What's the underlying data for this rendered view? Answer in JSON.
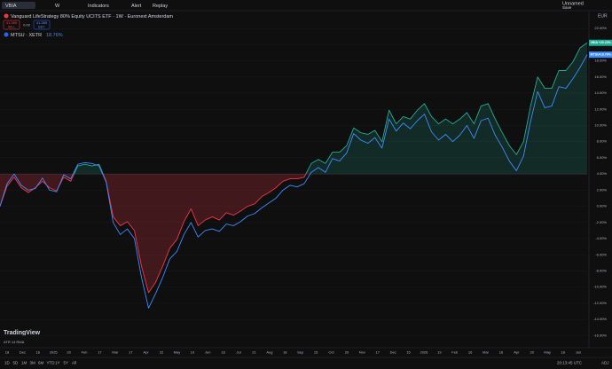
{
  "toolbar": {
    "symbol": "VBIA",
    "interval": "W",
    "indicators": "Indicators",
    "alert": "Alert",
    "replay": "Replay",
    "layout": "Unnamed",
    "save": "Save"
  },
  "legend": {
    "title": "Vanguard LifeStrategy 80% Equity UCITS ETF · 1W · Euronext Amsterdam",
    "sell_price": "41.385",
    "sell": "SELL",
    "spread": "0.00",
    "buy_price": "41.385",
    "buy": "BUY",
    "compare": "MTSU · XETR",
    "compare_change": "18.76%"
  },
  "currency": "EUR",
  "chart_data": {
    "type": "line",
    "baseline": 4,
    "up_color": "#22ab94",
    "down_color": "#f23645",
    "ylim": [
      -17.5,
      24.1
    ],
    "yticks": [
      {
        "value": 22,
        "label": "22.00%"
      },
      {
        "value": 20,
        "label": "20.00%"
      },
      {
        "value": 18,
        "label": "18.00%"
      },
      {
        "value": 16,
        "label": "16.00%"
      },
      {
        "value": 14,
        "label": "14.00%"
      },
      {
        "value": 12,
        "label": "12.00%"
      },
      {
        "value": 10,
        "label": "10.00%"
      },
      {
        "value": 8,
        "label": "8.00%"
      },
      {
        "value": 6,
        "label": "6.00%"
      },
      {
        "value": 4,
        "label": "4.00%"
      },
      {
        "value": 2,
        "label": "2.00%"
      },
      {
        "value": 0,
        "label": "0.00%"
      },
      {
        "value": -2,
        "label": "-2.00%"
      },
      {
        "value": -4,
        "label": "-4.00%"
      },
      {
        "value": -6,
        "label": "-6.00%"
      },
      {
        "value": -8,
        "label": "-8.00%"
      },
      {
        "value": -10,
        "label": "-10.00%"
      },
      {
        "value": -12,
        "label": "-12.00%"
      },
      {
        "value": -14,
        "label": "-14.00%"
      },
      {
        "value": -16,
        "label": "-16.00%"
      }
    ],
    "xtick_labels": [
      "18",
      "Dec",
      "16",
      "2025",
      "20",
      "Feb",
      "17",
      "Mar",
      "17",
      "Apr",
      "22",
      "May",
      "19",
      "Jun",
      "16",
      "Jul",
      "21",
      "Aug",
      "18",
      "Sep",
      "15",
      "Oct",
      "20",
      "Nov",
      "17",
      "Dec",
      "15",
      "2026",
      "19",
      "Feb",
      "16",
      "Mar",
      "16",
      "Apr",
      "20",
      "May",
      "18",
      "Jun"
    ],
    "series": [
      {
        "name": "VBIA",
        "baseline_colored": true,
        "price_label": "+20.23%",
        "values": [
          0,
          2.5,
          3.6,
          2.3,
          1.7,
          2.3,
          3.1,
          2.3,
          1.9,
          3.6,
          3.1,
          5.0,
          5.2,
          5.0,
          5.2,
          3.1,
          -1.3,
          -2.4,
          -1.9,
          -3.0,
          -7.4,
          -10.7,
          -9.4,
          -7.4,
          -5.2,
          -4.1,
          -1.9,
          -0.3,
          -2.4,
          -1.7,
          -1.3,
          -1.7,
          -0.8,
          -1.1,
          -0.6,
          0,
          0.3,
          1.2,
          1.7,
          2.3,
          3.1,
          3.4,
          3.4,
          3.6,
          5.3,
          5.8,
          5.3,
          6.7,
          6.7,
          7.5,
          9.7,
          9.1,
          8.9,
          9.4,
          8.0,
          11.9,
          10.2,
          11.1,
          10.8,
          11.9,
          12.7,
          11.1,
          10.2,
          10.8,
          10.2,
          10.8,
          11.6,
          10.2,
          12.4,
          12.7,
          10.8,
          9.1,
          7.5,
          6.4,
          8.0,
          12.4,
          16.0,
          14.6,
          14.6,
          16.8,
          16.8,
          17.9,
          19.6,
          20.23
        ]
      },
      {
        "name": "MTSU",
        "color": "#3d8bfd",
        "price_label": "+18.76%",
        "values": [
          0,
          2.8,
          4.0,
          2.6,
          2.0,
          2.2,
          3.5,
          2.0,
          1.8,
          3.9,
          3.4,
          5.2,
          5.4,
          5.3,
          5.0,
          3.0,
          -2.0,
          -3.5,
          -2.8,
          -4.0,
          -8.8,
          -12.6,
          -10.8,
          -8.8,
          -6.5,
          -5.6,
          -3.5,
          -2.0,
          -3.8,
          -3.0,
          -2.8,
          -3.1,
          -2.2,
          -2.4,
          -1.9,
          -1.2,
          -0.9,
          -0.2,
          0.4,
          1.0,
          2.0,
          2.6,
          2.4,
          2.8,
          4.2,
          4.8,
          4.2,
          5.9,
          5.6,
          6.6,
          9.0,
          8.2,
          7.8,
          8.5,
          7.2,
          10.8,
          9.3,
          10.3,
          9.6,
          10.6,
          11.4,
          9.2,
          8.2,
          8.9,
          8.0,
          8.8,
          10.0,
          8.4,
          10.6,
          10.9,
          8.8,
          7.3,
          5.6,
          4.4,
          6.2,
          10.5,
          14.2,
          12.2,
          12.4,
          14.8,
          14.6,
          15.8,
          17.2,
          18.76
        ]
      }
    ]
  },
  "indicator": {
    "name": "ATR 14 RMA"
  },
  "watermark": "TradingView",
  "bottom_bar": {
    "ranges": [
      "1D",
      "5D",
      "1M",
      "3M",
      "6M",
      "YTD",
      "1Y",
      "5Y",
      "All"
    ],
    "time": "20:13:45 UTC",
    "adj": "ADJ"
  }
}
